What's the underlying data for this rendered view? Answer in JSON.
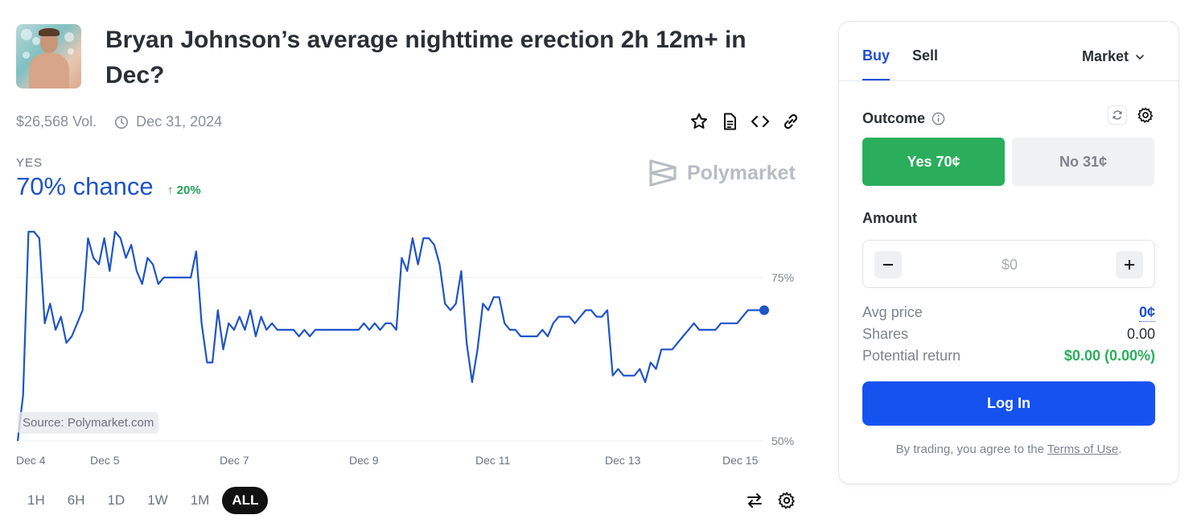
{
  "market": {
    "title": "Bryan Johnson’s average nighttime erection 2h 12m+ in Dec?",
    "volume": "$26,568 Vol.",
    "end_date": "Dec 31, 2024",
    "outcome_label": "YES",
    "chance": "70% chance",
    "delta": "↑ 20%",
    "brand": "Polymarket",
    "source": "Source: Polymarket.com"
  },
  "toolbar": {
    "icons": [
      "star-icon",
      "document-icon",
      "code-icon",
      "link-icon"
    ]
  },
  "range_tabs": [
    "1H",
    "6H",
    "1D",
    "1W",
    "1M",
    "ALL"
  ],
  "active_range": "ALL",
  "chart_data": {
    "type": "line",
    "series": [
      {
        "values": [
          50,
          57,
          82,
          82,
          81,
          68,
          71,
          67,
          69,
          65,
          66,
          68,
          70,
          81,
          78,
          77,
          81,
          76,
          82,
          81,
          78,
          80,
          76,
          74,
          78,
          77,
          74,
          75,
          75,
          75,
          75,
          75,
          75,
          79,
          68,
          62,
          62,
          70,
          64,
          68,
          67,
          69,
          67,
          70,
          66,
          69,
          67,
          68,
          67,
          67,
          67,
          67,
          66,
          67,
          66,
          67,
          67,
          67,
          67,
          67,
          67,
          67,
          67,
          67,
          68,
          67,
          68,
          67,
          68,
          68,
          67,
          78,
          76,
          81,
          77,
          81,
          81,
          80,
          77,
          71,
          70,
          71,
          76,
          65,
          59,
          64,
          71,
          70,
          72,
          72,
          68,
          67,
          67,
          66,
          66,
          66,
          66,
          67,
          66,
          68,
          69,
          69,
          69,
          68,
          69,
          70,
          70,
          69,
          69,
          70,
          60,
          61,
          60,
          60,
          60,
          61,
          59,
          62,
          61,
          64,
          64,
          64,
          65,
          66,
          67,
          68,
          67,
          67,
          67,
          67,
          68,
          68,
          68,
          68,
          69,
          70,
          70,
          70,
          70
        ]
      }
    ],
    "x_ticks": [
      "Dec 4",
      "Dec 5",
      "Dec 7",
      "Dec 9",
      "Dec 11",
      "Dec 13",
      "Dec 15"
    ],
    "y_ticks": [
      "75%",
      "50%"
    ],
    "ylim": [
      50,
      82
    ],
    "color": "#1e54c8",
    "grid": true
  },
  "panel": {
    "tabs": {
      "buy": "Buy",
      "sell": "Sell"
    },
    "order_type": "Market",
    "outcome_label": "Outcome",
    "yes_button": "Yes 70¢",
    "no_button": "No 31¢",
    "amount_label": "Amount",
    "amount_placeholder": "$0",
    "stats": {
      "avg_price_label": "Avg price",
      "avg_price": "0¢",
      "shares_label": "Shares",
      "shares": "0.00",
      "return_label": "Potential return",
      "return": "$0.00 (0.00%)"
    },
    "login_button": "Log In",
    "terms_prefix": "By trading, you agree to the ",
    "terms_link": "Terms of Use",
    "terms_suffix": "."
  },
  "colors": {
    "accent": "#1652f0",
    "yes": "#2aae5c",
    "line": "#1e54c8"
  }
}
